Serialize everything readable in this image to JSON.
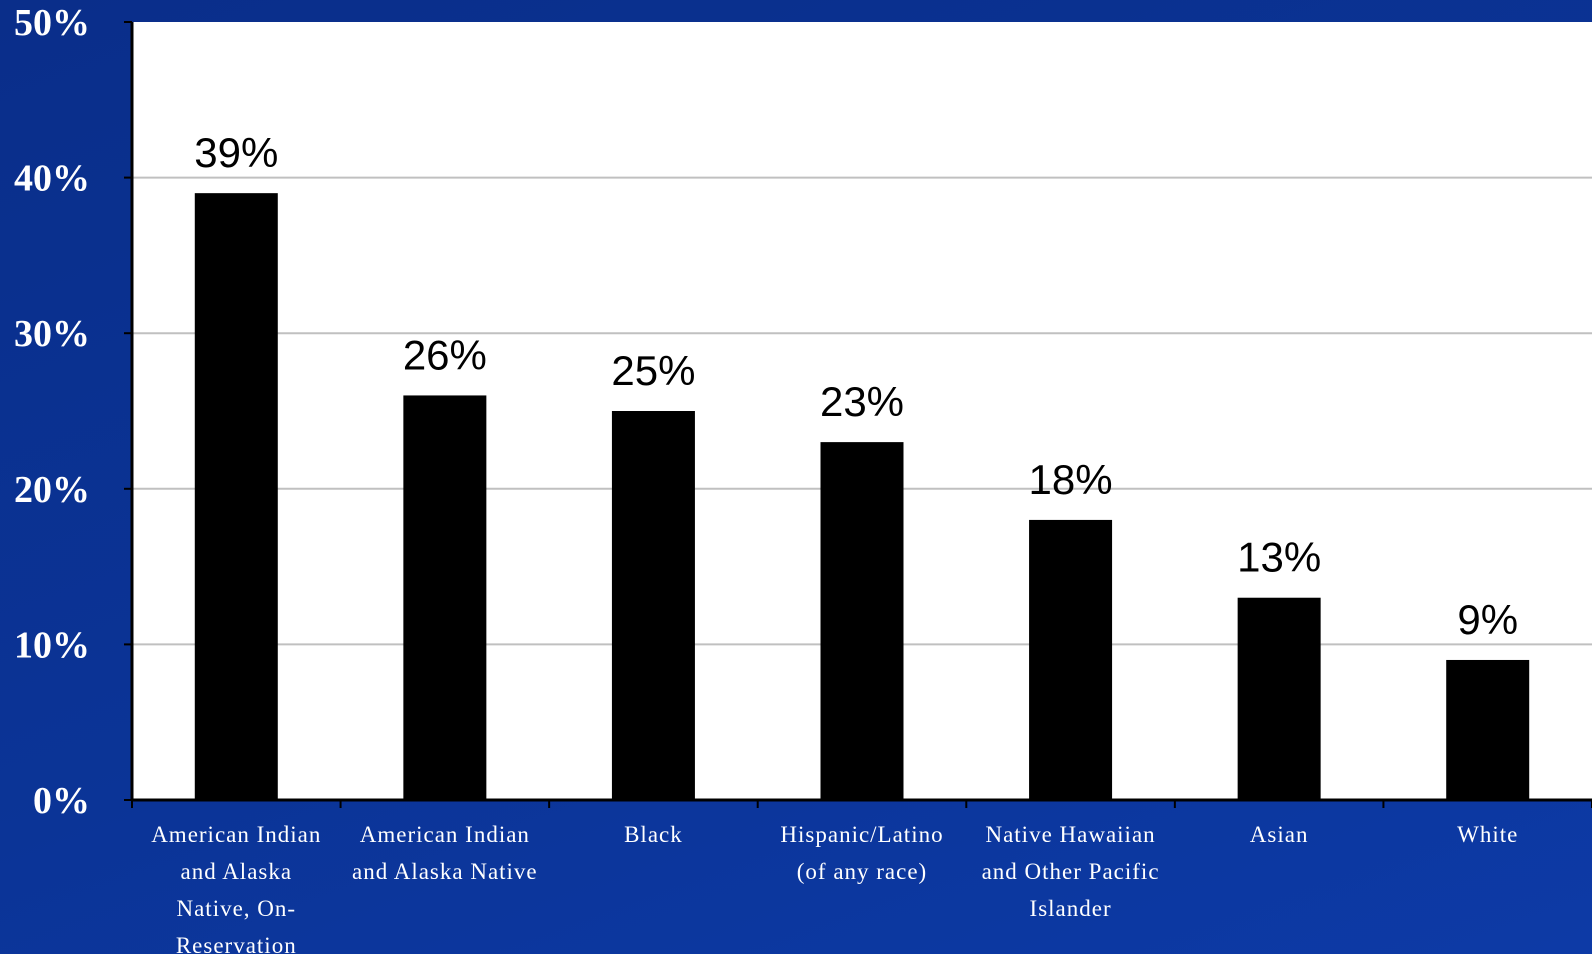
{
  "chart_data": {
    "type": "bar",
    "title": "",
    "xlabel": "",
    "ylabel": "",
    "ylim": [
      0,
      50
    ],
    "yticks": [
      "0%",
      "10%",
      "20%",
      "30%",
      "40%",
      "50%"
    ],
    "grid": true,
    "categories": [
      "American Indian and Alaska Native, On-Reservation",
      "American Indian and Alaska Native",
      "Black",
      "Hispanic/Latino (of any race)",
      "Native Hawaiian and Other Pacific Islander",
      "Asian",
      "White"
    ],
    "category_lines": [
      [
        "American Indian",
        "and Alaska",
        "Native, On-",
        "Reservation"
      ],
      [
        "American Indian",
        "and Alaska Native"
      ],
      [
        "Black"
      ],
      [
        "Hispanic/Latino",
        "(of any race)"
      ],
      [
        "Native Hawaiian",
        "and Other Pacific",
        "Islander"
      ],
      [
        "Asian"
      ],
      [
        "White"
      ]
    ],
    "values": [
      39,
      26,
      25,
      23,
      18,
      13,
      9
    ],
    "data_labels": [
      "39%",
      "26%",
      "25%",
      "23%",
      "18%",
      "13%",
      "9%"
    ],
    "colors": {
      "bar": "#000000",
      "plot_background": "#ffffff",
      "gridline": "#c0c0c0",
      "page_background": "#0b3497",
      "axis_text": "#ffffff"
    }
  }
}
